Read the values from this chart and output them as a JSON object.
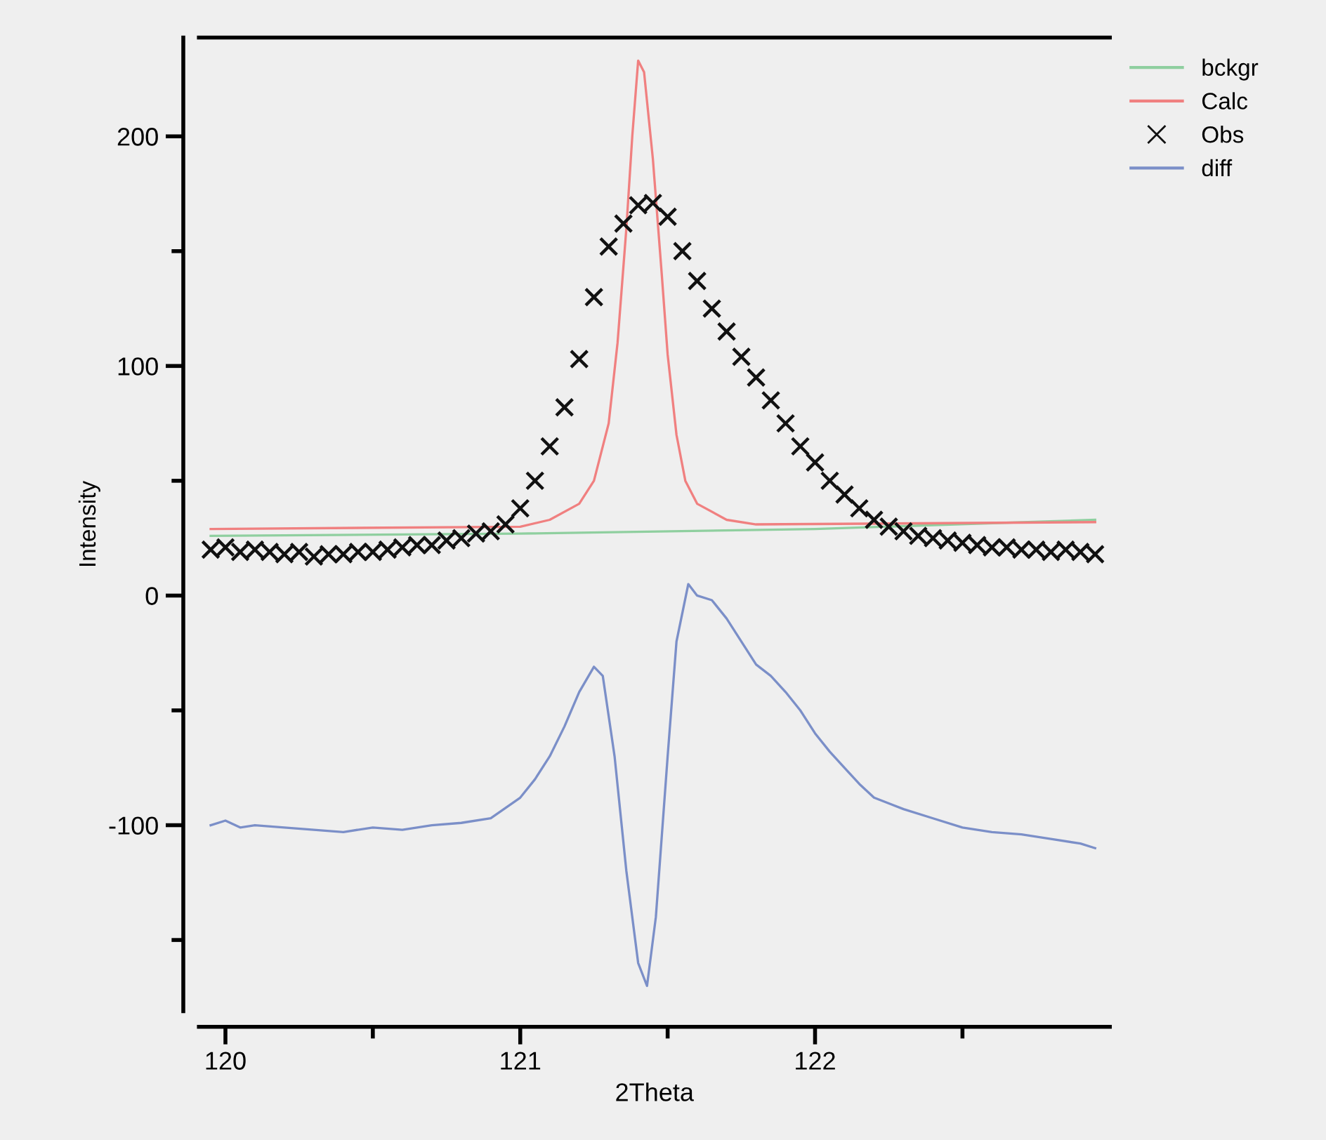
{
  "chart_data": {
    "type": "line",
    "xlabel": "2Theta",
    "ylabel": "Intensity",
    "xlim": [
      119.91,
      123.0
    ],
    "ylim": [
      -181,
      243
    ],
    "xticks": [
      120,
      {
        "value": 120.5,
        "label": null
      },
      121,
      {
        "value": 121.5,
        "label": null
      },
      122,
      {
        "value": 122.5,
        "label": null
      }
    ],
    "yticks": [
      {
        "value": -150,
        "label": null
      },
      -100,
      {
        "value": -50,
        "label": null
      },
      0,
      {
        "value": 50,
        "label": null
      },
      100,
      {
        "value": 150,
        "label": null
      },
      200
    ],
    "grid": false,
    "legend": "top right",
    "marker": "none",
    "line_style": "solid",
    "series": [
      {
        "name": "bckgr",
        "color": "#8fcf9f",
        "x": [
          119.95,
          121.0,
          122.0,
          122.95
        ],
        "values": [
          26,
          27,
          29,
          33
        ]
      },
      {
        "name": "Calc",
        "color": "#f08080",
        "x": [
          119.95,
          121.0,
          121.1,
          121.2,
          121.25,
          121.3,
          121.33,
          121.36,
          121.38,
          121.4,
          121.42,
          121.45,
          121.48,
          121.5,
          121.53,
          121.56,
          121.6,
          121.7,
          121.8,
          122.95
        ],
        "values": [
          29,
          30,
          33,
          40,
          50,
          75,
          110,
          160,
          200,
          233,
          228,
          190,
          140,
          105,
          70,
          50,
          40,
          33,
          31,
          32
        ]
      },
      {
        "name": "Obs",
        "type": "scatter",
        "marker": "cross",
        "color": "#111111",
        "x": [
          119.95,
          120.0,
          120.05,
          120.1,
          120.15,
          120.2,
          120.25,
          120.3,
          120.35,
          120.4,
          120.45,
          120.5,
          120.55,
          120.6,
          120.65,
          120.7,
          120.75,
          120.8,
          120.85,
          120.9,
          120.95,
          121.0,
          121.05,
          121.1,
          121.15,
          121.2,
          121.25,
          121.3,
          121.35,
          121.4,
          121.45,
          121.5,
          121.55,
          121.6,
          121.65,
          121.7,
          121.75,
          121.8,
          121.85,
          121.9,
          121.95,
          122.0,
          122.05,
          122.1,
          122.15,
          122.2,
          122.25,
          122.3,
          122.35,
          122.4,
          122.45,
          122.5,
          122.55,
          122.6,
          122.65,
          122.7,
          122.75,
          122.8,
          122.85,
          122.9,
          122.95
        ],
        "values": [
          20,
          21,
          19,
          20,
          19,
          18,
          19,
          17,
          18,
          18,
          19,
          19,
          20,
          21,
          22,
          22,
          24,
          25,
          27,
          28,
          31,
          38,
          50,
          65,
          82,
          103,
          130,
          152,
          162,
          170,
          171,
          165,
          150,
          137,
          125,
          115,
          104,
          95,
          85,
          75,
          65,
          58,
          50,
          44,
          38,
          33,
          30,
          28,
          26,
          25,
          24,
          23,
          22,
          21,
          21,
          20,
          20,
          19,
          20,
          19,
          18
        ]
      },
      {
        "name": "diff",
        "color": "#7b8fc8",
        "x": [
          119.95,
          120.0,
          120.05,
          120.1,
          120.2,
          120.3,
          120.4,
          120.5,
          120.6,
          120.7,
          120.8,
          120.9,
          121.0,
          121.05,
          121.1,
          121.15,
          121.2,
          121.25,
          121.28,
          121.32,
          121.36,
          121.4,
          121.43,
          121.46,
          121.5,
          121.53,
          121.57,
          121.6,
          121.65,
          121.7,
          121.75,
          121.8,
          121.85,
          121.9,
          121.95,
          122.0,
          122.05,
          122.1,
          122.15,
          122.2,
          122.3,
          122.4,
          122.5,
          122.6,
          122.7,
          122.8,
          122.9,
          122.95
        ],
        "values": [
          -100,
          -98,
          -101,
          -100,
          -101,
          -102,
          -103,
          -101,
          -102,
          -100,
          -99,
          -97,
          -88,
          -80,
          -70,
          -57,
          -42,
          -31,
          -35,
          -70,
          -120,
          -160,
          -170,
          -140,
          -70,
          -20,
          5,
          0,
          -2,
          -10,
          -20,
          -30,
          -35,
          -42,
          -50,
          -60,
          -68,
          -75,
          -82,
          -88,
          -93,
          -97,
          -101,
          -103,
          -104,
          -106,
          -108,
          -110
        ]
      }
    ]
  }
}
